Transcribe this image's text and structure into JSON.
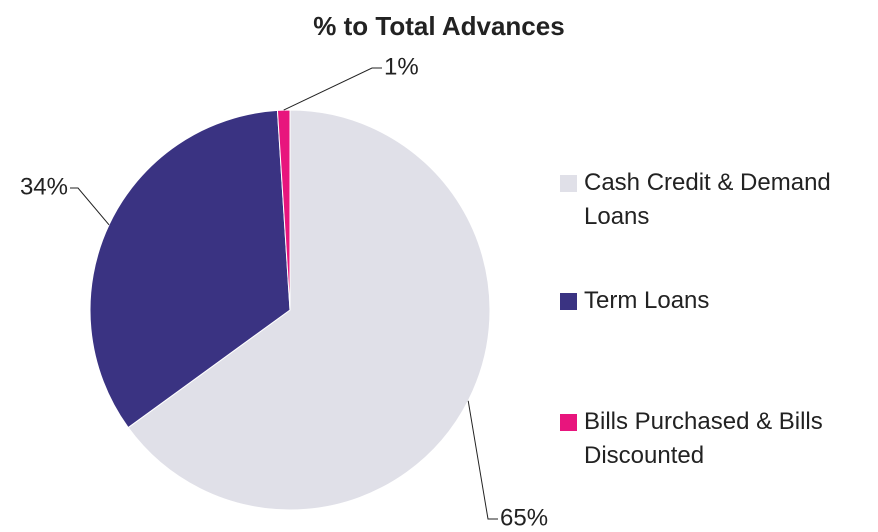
{
  "chart_data": {
    "type": "pie",
    "title": "% to Total Advances",
    "categories": [
      "Cash Credit & Demand Loans",
      "Term Loans",
      "Bills Purchased & Bills Discounted"
    ],
    "values": [
      65,
      34,
      1
    ],
    "value_labels": [
      "65%",
      "34%",
      "1%"
    ],
    "colors": [
      "#e0e0e8",
      "#3a3382",
      "#e8157d"
    ],
    "legend": "right"
  }
}
